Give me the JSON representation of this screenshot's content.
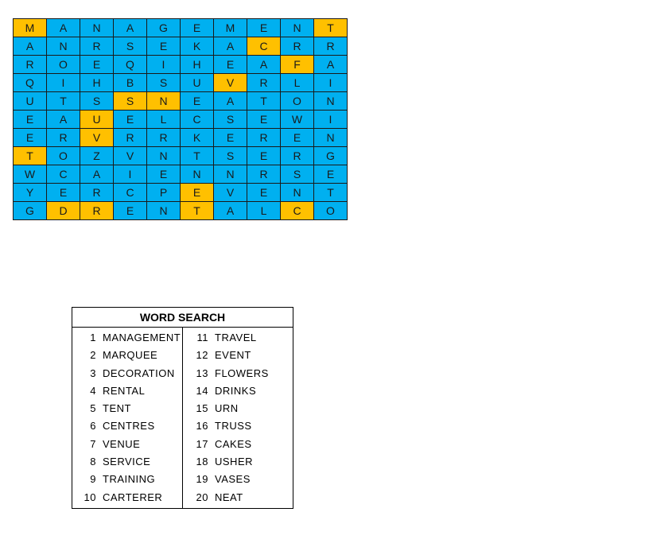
{
  "colors": {
    "cell": "#00B0F0",
    "highlight": "#FFC000"
  },
  "grid": [
    [
      "M",
      "A",
      "N",
      "A",
      "G",
      "E",
      "M",
      "E",
      "N",
      "T"
    ],
    [
      "A",
      "N",
      "R",
      "S",
      "E",
      "K",
      "A",
      "C",
      "R",
      "R"
    ],
    [
      "R",
      "O",
      "E",
      "Q",
      "I",
      "H",
      "E",
      "A",
      "F",
      "A"
    ],
    [
      "Q",
      "I",
      "H",
      "B",
      "S",
      "U",
      "V",
      "R",
      "L",
      "I"
    ],
    [
      "U",
      "T",
      "S",
      "S",
      "N",
      "E",
      "A",
      "T",
      "O",
      "N"
    ],
    [
      "E",
      "A",
      "U",
      "E",
      "L",
      "C",
      "S",
      "E",
      "W",
      "I"
    ],
    [
      "E",
      "R",
      "V",
      "R",
      "R",
      "K",
      "E",
      "R",
      "E",
      "N"
    ],
    [
      "T",
      "O",
      "Z",
      "V",
      "N",
      "T",
      "S",
      "E",
      "R",
      "G"
    ],
    [
      "W",
      "C",
      "A",
      "I",
      "E",
      "N",
      "N",
      "R",
      "S",
      "E"
    ],
    [
      "Y",
      "E",
      "R",
      "C",
      "P",
      "E",
      "V",
      "E",
      "N",
      "T"
    ],
    [
      "G",
      "D",
      "R",
      "E",
      "N",
      "T",
      "A",
      "L",
      "C",
      "O"
    ]
  ],
  "highlighted": [
    [
      0,
      0
    ],
    [
      0,
      9
    ],
    [
      1,
      7
    ],
    [
      2,
      8
    ],
    [
      3,
      6
    ],
    [
      4,
      3
    ],
    [
      4,
      4
    ],
    [
      5,
      2
    ],
    [
      6,
      2
    ],
    [
      7,
      0
    ],
    [
      9,
      5
    ],
    [
      10,
      1
    ],
    [
      10,
      2
    ],
    [
      10,
      5
    ],
    [
      10,
      8
    ]
  ],
  "word_search": {
    "title": "WORD SEARCH",
    "words": [
      {
        "n": "1",
        "w": "MANAGEMENT"
      },
      {
        "n": "2",
        "w": "MARQUEE"
      },
      {
        "n": "3",
        "w": "DECORATION"
      },
      {
        "n": "4",
        "w": "RENTAL"
      },
      {
        "n": "5",
        "w": "TENT"
      },
      {
        "n": "6",
        "w": "CENTRES"
      },
      {
        "n": "7",
        "w": "VENUE"
      },
      {
        "n": "8",
        "w": "SERVICE"
      },
      {
        "n": "9",
        "w": "TRAINING"
      },
      {
        "n": "10",
        "w": "CARTERER"
      },
      {
        "n": "11",
        "w": "TRAVEL"
      },
      {
        "n": "12",
        "w": "EVENT"
      },
      {
        "n": "13",
        "w": "FLOWERS"
      },
      {
        "n": "14",
        "w": "DRINKS"
      },
      {
        "n": "15",
        "w": "URN"
      },
      {
        "n": "16",
        "w": "TRUSS"
      },
      {
        "n": "17",
        "w": "CAKES"
      },
      {
        "n": "18",
        "w": "USHER"
      },
      {
        "n": "19",
        "w": "VASES"
      },
      {
        "n": "20",
        "w": "NEAT"
      }
    ]
  }
}
